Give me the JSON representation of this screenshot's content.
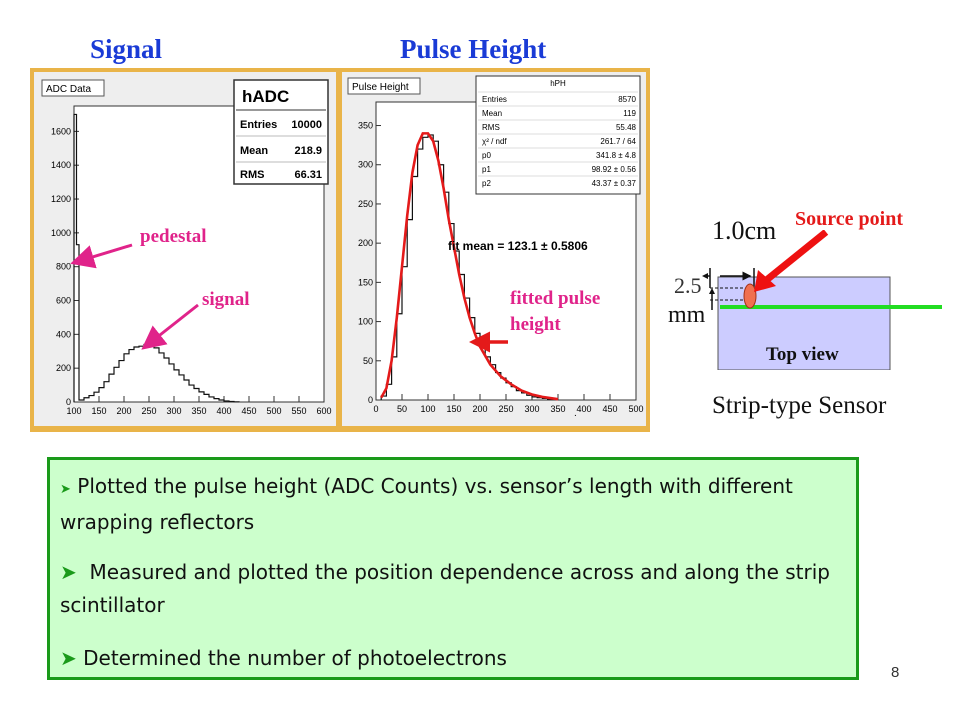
{
  "headers": {
    "signal": "Signal",
    "pulse_height": "Pulse Height"
  },
  "signal_panel": {
    "tab_label": "ADC Data",
    "stats_title": "hADC",
    "stats": [
      {
        "key": "Entries",
        "value": "10000"
      },
      {
        "key": "Mean",
        "value": "218.9"
      },
      {
        "key": "RMS",
        "value": "66.31"
      }
    ]
  },
  "pulse_panel": {
    "tab_label": "Pulse Height",
    "stats_title": "hPH",
    "stats": [
      {
        "key": "Entries",
        "value": "8570"
      },
      {
        "key": "Mean",
        "value": "119"
      },
      {
        "key": "RMS",
        "value": "55.48"
      },
      {
        "key": "χ² / ndf",
        "value": "261.7 / 64"
      },
      {
        "key": "p0",
        "value": "341.8 ± 4.8"
      },
      {
        "key": "p1",
        "value": "98.92 ± 0.56"
      },
      {
        "key": "p2",
        "value": "43.37 ± 0.37"
      }
    ],
    "fit_label": "fit mean = 123.1 ± 0.5806"
  },
  "annotations": {
    "pedestal": "pedestal",
    "signal": "signal",
    "fitted_line1": "fitted pulse",
    "fitted_line2": "height"
  },
  "sensor": {
    "source_point": "Source point",
    "width_label": "1.0cm",
    "offset_top": "2.5",
    "offset_bottom": "mm",
    "top_view": "Top view",
    "caption": "Strip-type Sensor",
    "colors": {
      "sensor_fill": "#ccccff",
      "fiber": "#22dd22",
      "source": "#f07050",
      "arrow": "#ee1111"
    }
  },
  "bullets": [
    {
      "text": "Plotted the pulse height (ADC Counts) vs. sensor’s length with different wrapping reflectors"
    },
    {
      "text": "Measured and plotted the position dependence across and along the strip scintillator"
    },
    {
      "text": "Determined the number of photoelectrons"
    }
  ],
  "page_number": "8",
  "chart_data": [
    {
      "type": "histogram",
      "title": "ADC Data",
      "x_ticks": [
        100,
        150,
        200,
        250,
        300,
        350,
        400,
        450,
        500,
        550,
        600
      ],
      "y_ticks": [
        0,
        200,
        400,
        600,
        800,
        1000,
        1200,
        1400,
        1600
      ],
      "xlim": [
        100,
        600
      ],
      "ylim": [
        0,
        1750
      ],
      "series": [
        {
          "name": "",
          "bins": [
            [
              100,
              1700
            ],
            [
              105,
              930
            ],
            [
              110,
              12
            ],
            [
              120,
              25
            ],
            [
              130,
              38
            ],
            [
              140,
              58
            ],
            [
              150,
              85
            ],
            [
              160,
              120
            ],
            [
              170,
              165
            ],
            [
              180,
              205
            ],
            [
              190,
              245
            ],
            [
              200,
              285
            ],
            [
              210,
              310
            ],
            [
              220,
              325
            ],
            [
              230,
              330
            ],
            [
              240,
              340
            ],
            [
              250,
              340
            ],
            [
              260,
              320
            ],
            [
              270,
              290
            ],
            [
              280,
              260
            ],
            [
              290,
              225
            ],
            [
              300,
              190
            ],
            [
              310,
              160
            ],
            [
              320,
              130
            ],
            [
              330,
              100
            ],
            [
              340,
              80
            ],
            [
              350,
              60
            ],
            [
              360,
              45
            ],
            [
              370,
              30
            ],
            [
              380,
              20
            ],
            [
              390,
              12
            ],
            [
              400,
              6
            ],
            [
              410,
              3
            ],
            [
              420,
              1
            ]
          ]
        }
      ]
    },
    {
      "type": "histogram",
      "title": "Pulse Height",
      "x_ticks": [
        0,
        50,
        100,
        150,
        200,
        250,
        300,
        350,
        400,
        450,
        500
      ],
      "y_ticks": [
        0,
        50,
        100,
        150,
        200,
        250,
        300,
        350
      ],
      "xlim": [
        0,
        500
      ],
      "ylim": [
        0,
        380
      ],
      "series": [
        {
          "name": "",
          "bins": [
            [
              10,
              5
            ],
            [
              20,
              20
            ],
            [
              30,
              55
            ],
            [
              40,
              110
            ],
            [
              50,
              170
            ],
            [
              60,
              230
            ],
            [
              70,
              285
            ],
            [
              80,
              320
            ],
            [
              90,
              335
            ],
            [
              100,
              338
            ],
            [
              110,
              330
            ],
            [
              120,
              300
            ],
            [
              130,
              265
            ],
            [
              140,
              225
            ],
            [
              150,
              190
            ],
            [
              160,
              160
            ],
            [
              170,
              130
            ],
            [
              180,
              105
            ],
            [
              190,
              85
            ],
            [
              200,
              70
            ],
            [
              210,
              55
            ],
            [
              220,
              45
            ],
            [
              230,
              35
            ],
            [
              240,
              28
            ],
            [
              250,
              22
            ],
            [
              260,
              17
            ],
            [
              270,
              12
            ],
            [
              280,
              9
            ],
            [
              290,
              6
            ],
            [
              300,
              4
            ],
            [
              310,
              3
            ],
            [
              320,
              2
            ],
            [
              330,
              1
            ]
          ]
        },
        {
          "name": "",
          "fit": [
            [
              10,
              3
            ],
            [
              20,
              15
            ],
            [
              30,
              50
            ],
            [
              40,
              105
            ],
            [
              50,
              170
            ],
            [
              60,
              235
            ],
            [
              70,
              290
            ],
            [
              80,
              325
            ],
            [
              90,
              340
            ],
            [
              100,
              340
            ],
            [
              110,
              330
            ],
            [
              120,
              305
            ],
            [
              130,
              270
            ],
            [
              140,
              230
            ],
            [
              150,
              195
            ],
            [
              160,
              160
            ],
            [
              170,
              130
            ],
            [
              180,
              105
            ],
            [
              190,
              85
            ],
            [
              200,
              68
            ],
            [
              220,
              45
            ],
            [
              240,
              30
            ],
            [
              260,
              20
            ],
            [
              280,
              12
            ],
            [
              300,
              7
            ],
            [
              320,
              4
            ],
            [
              340,
              2
            ],
            [
              350,
              1
            ]
          ]
        }
      ]
    }
  ]
}
